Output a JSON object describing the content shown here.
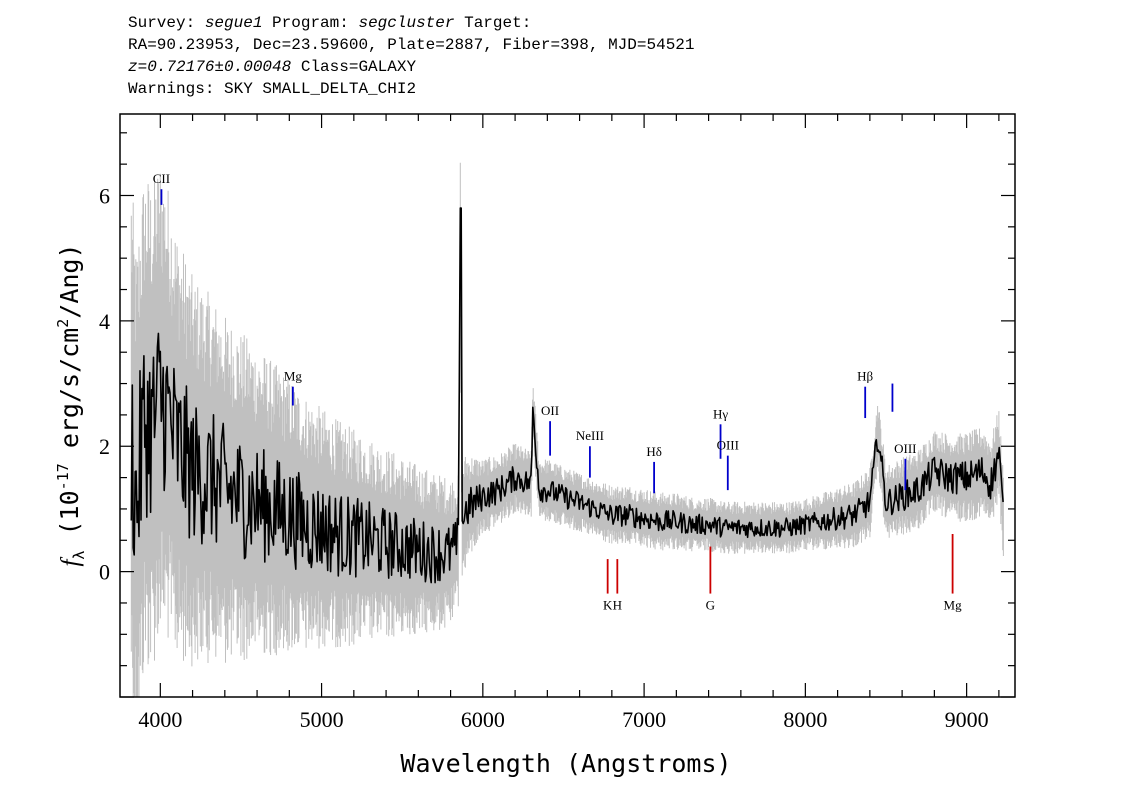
{
  "header": {
    "survey_label": "Survey:",
    "survey": "segue1",
    "program_label": "Program:",
    "program": "segcluster",
    "target_label": "Target:",
    "line2": "RA=90.23953, Dec=23.59600, Plate=2887, Fiber=398, MJD=54521",
    "redshift": "z=0.72176±0.00048",
    "class": "Class=GALAXY",
    "warnings": "Warnings: SKY SMALL_DELTA_CHI2"
  },
  "chart_data": {
    "type": "line",
    "xlabel": "Wavelength (Angstroms)",
    "ylabel": "f_λ (10^-17 erg/s/cm^2/Ang)",
    "xlim": [
      3750,
      9300
    ],
    "ylim": [
      -2,
      7.3
    ],
    "x_ticks": [
      4000,
      5000,
      6000,
      7000,
      8000,
      9000
    ],
    "y_ticks": [
      0,
      2,
      4,
      6
    ],
    "grid": false,
    "colors": {
      "flux": "#000000",
      "error": "#c0c0c0",
      "emission": "#0000cc",
      "absorption": "#cc0000"
    },
    "series": [
      {
        "role": "flux",
        "x": [
          3820,
          3850,
          3900,
          3950,
          4000,
          4050,
          4100,
          4150,
          4200,
          4300,
          4400,
          4500,
          4600,
          4700,
          4800,
          4900,
          5000,
          5100,
          5200,
          5300,
          5400,
          5500,
          5600,
          5700,
          5800,
          5850,
          5860,
          5870,
          5900,
          6000,
          6100,
          6200,
          6300,
          6310,
          6350,
          6400,
          6500,
          6600,
          6700,
          6800,
          6900,
          7000,
          7100,
          7200,
          7300,
          7400,
          7500,
          7600,
          7700,
          7800,
          7900,
          8000,
          8100,
          8200,
          8300,
          8400,
          8450,
          8500,
          8600,
          8700,
          8800,
          8900,
          9000,
          9100,
          9150,
          9200,
          9230
        ],
        "y": [
          2.2,
          1.0,
          2.4,
          2.3,
          2.8,
          2.5,
          2.0,
          1.8,
          1.6,
          1.5,
          1.3,
          1.2,
          1.1,
          1.0,
          0.9,
          0.75,
          0.7,
          0.6,
          0.55,
          0.5,
          0.45,
          0.4,
          0.35,
          0.3,
          0.3,
          0.5,
          5.8,
          0.8,
          1.0,
          1.2,
          1.3,
          1.5,
          1.4,
          2.6,
          1.3,
          1.3,
          1.2,
          1.1,
          1.0,
          0.9,
          0.9,
          0.85,
          0.8,
          0.8,
          0.75,
          0.75,
          0.7,
          0.7,
          0.7,
          0.7,
          0.7,
          0.75,
          0.8,
          0.85,
          0.9,
          1.1,
          2.2,
          1.1,
          1.2,
          1.3,
          1.6,
          1.5,
          1.5,
          1.6,
          1.4,
          1.9,
          0.8
        ]
      },
      {
        "role": "error",
        "x": [
          3820,
          4000,
          4200,
          4500,
          5000,
          5500,
          5800,
          6000,
          6500,
          7000,
          7500,
          8000,
          8500,
          9000,
          9230
        ],
        "y": [
          3.5,
          3.2,
          2.6,
          2.2,
          1.6,
          1.2,
          1.0,
          0.5,
          0.4,
          0.4,
          0.35,
          0.35,
          0.5,
          0.6,
          0.6
        ]
      }
    ],
    "line_markers": [
      {
        "label": "CII",
        "x": 4007,
        "y_top": 6.1,
        "y_bottom": 5.85,
        "kind": "emission"
      },
      {
        "label": "Mg",
        "x": 4822,
        "y_top": 2.95,
        "y_bottom": 2.65,
        "kind": "emission"
      },
      {
        "label": "OII",
        "x": 6417,
        "y_top": 2.4,
        "y_bottom": 1.85,
        "kind": "emission"
      },
      {
        "label": "NeIII",
        "x": 6664,
        "y_top": 2.0,
        "y_bottom": 1.5,
        "kind": "emission"
      },
      {
        "label": "Hδ",
        "x": 7062,
        "y_top": 1.75,
        "y_bottom": 1.25,
        "kind": "emission"
      },
      {
        "label": "Hγ",
        "x": 7474,
        "y_top": 2.35,
        "y_bottom": 1.8,
        "kind": "emission"
      },
      {
        "label": "OIII",
        "x": 7519,
        "y_top": 1.85,
        "y_bottom": 1.3,
        "kind": "emission"
      },
      {
        "label": "Hβ",
        "x": 8371,
        "y_top": 2.95,
        "y_bottom": 2.45,
        "kind": "emission"
      },
      {
        "label": "",
        "x": 8540,
        "y_top": 3.0,
        "y_bottom": 2.55,
        "kind": "emission"
      },
      {
        "label": "OIII",
        "x": 8620,
        "y_top": 1.8,
        "y_bottom": 1.3,
        "kind": "emission"
      },
      {
        "label": "K",
        "x": 6774,
        "y_top": -0.35,
        "y_bottom": 0.2,
        "kind": "absorption"
      },
      {
        "label": "H",
        "x": 6834,
        "y_top": -0.35,
        "y_bottom": 0.2,
        "kind": "absorption"
      },
      {
        "label": "G",
        "x": 7411,
        "y_top": -0.35,
        "y_bottom": 0.4,
        "kind": "absorption"
      },
      {
        "label": "Mg",
        "x": 8913,
        "y_top": -0.35,
        "y_bottom": 0.6,
        "kind": "absorption"
      }
    ]
  }
}
